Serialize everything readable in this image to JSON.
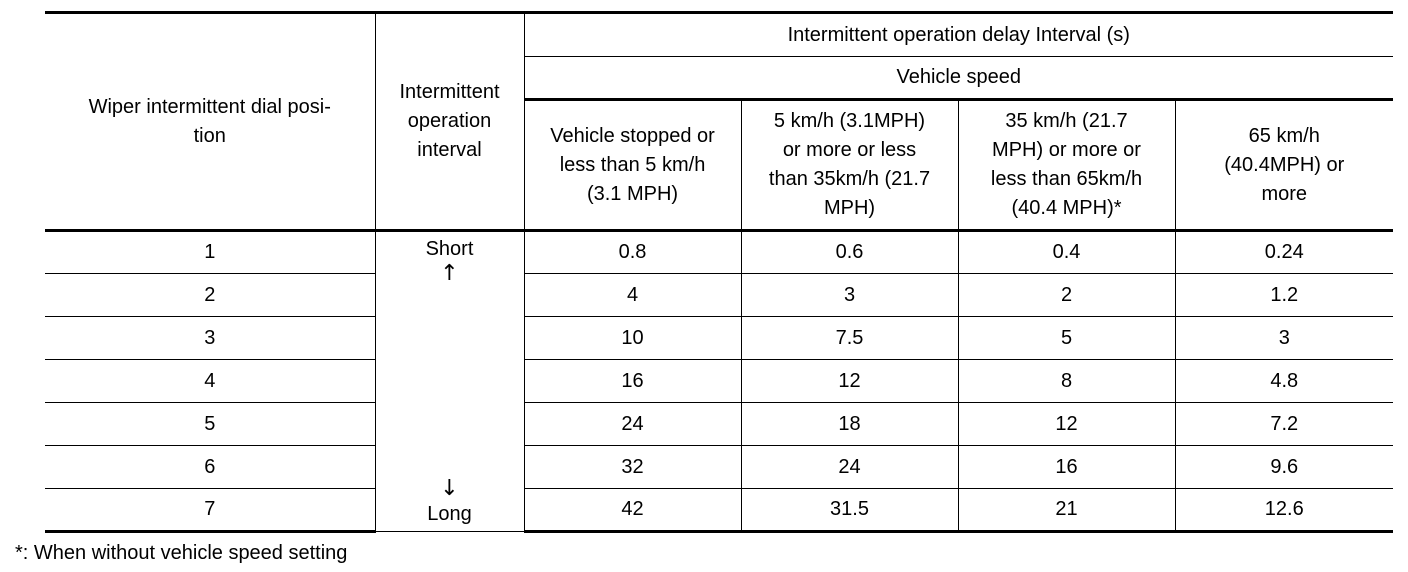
{
  "table": {
    "col_dial_position": "Wiper intermittent dial posi-\ntion",
    "col_interval": "Intermittent\noperation\ninterval",
    "group_delay": "Intermittent operation delay Interval (s)",
    "group_vehicle_speed": "Vehicle speed",
    "speed_columns": [
      "Vehicle stopped or\nless than 5 km/h\n(3.1 MPH)",
      "5 km/h (3.1MPH)\nor more or less\nthan 35km/h (21.7\nMPH)",
      "35 km/h (21.7\nMPH) or more or\nless than 65km/h\n(40.4 MPH)*",
      "65 km/h\n(40.4MPH) or\nmore"
    ],
    "interval_short": "Short",
    "interval_long": "Long",
    "arrow_up": "↑",
    "arrow_down": "↓",
    "rows": [
      {
        "position": "1",
        "values": [
          "0.8",
          "0.6",
          "0.4",
          "0.24"
        ]
      },
      {
        "position": "2",
        "values": [
          "4",
          "3",
          "2",
          "1.2"
        ]
      },
      {
        "position": "3",
        "values": [
          "10",
          "7.5",
          "5",
          "3"
        ]
      },
      {
        "position": "4",
        "values": [
          "16",
          "12",
          "8",
          "4.8"
        ]
      },
      {
        "position": "5",
        "values": [
          "24",
          "18",
          "12",
          "7.2"
        ]
      },
      {
        "position": "6",
        "values": [
          "32",
          "24",
          "16",
          "9.6"
        ]
      },
      {
        "position": "7",
        "values": [
          "42",
          "31.5",
          "21",
          "12.6"
        ]
      }
    ]
  },
  "footnote": "*: When without vehicle speed setting"
}
